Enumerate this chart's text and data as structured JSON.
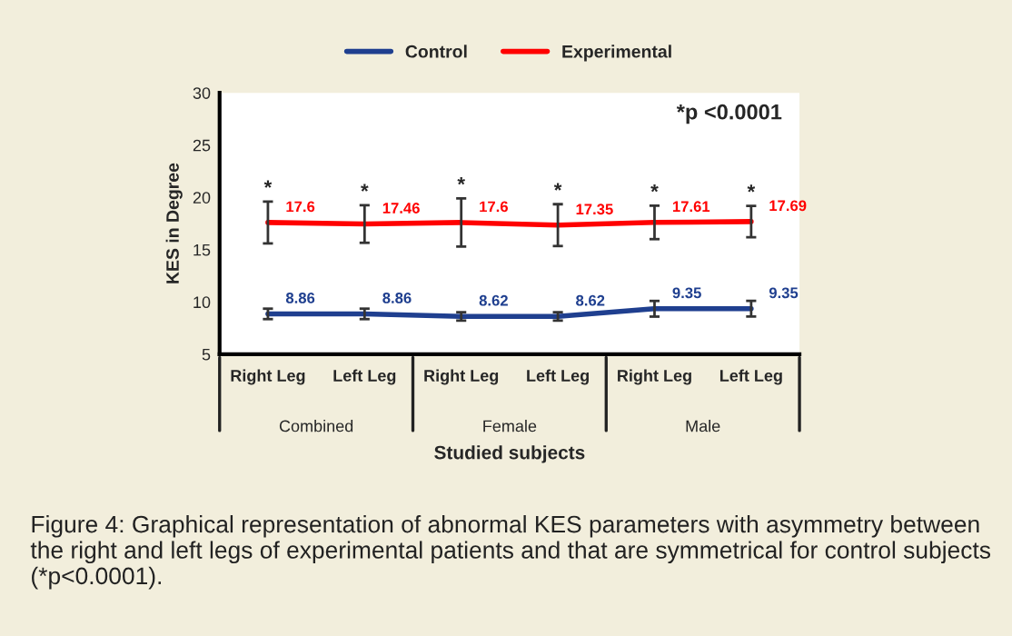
{
  "chart_data": {
    "type": "line",
    "xlabel": "Studied subjects",
    "ylabel": "KES in Degree",
    "categories": [
      "Right Leg",
      "Left Leg",
      "Right Leg",
      "Left Leg",
      "Right Leg",
      "Left Leg"
    ],
    "series": [
      {
        "name": "Control",
        "color": "#1f3f8f",
        "values": [
          8.86,
          8.86,
          8.62,
          8.62,
          9.35,
          9.35
        ],
        "errors": [
          0.5,
          0.5,
          0.4,
          0.4,
          0.75,
          0.75
        ]
      },
      {
        "name": "Experimental",
        "color": "#ff0000",
        "values": [
          17.6,
          17.46,
          17.6,
          17.35,
          17.61,
          17.69
        ],
        "errors": [
          2.0,
          1.8,
          2.3,
          2.0,
          1.6,
          1.5
        ]
      }
    ],
    "ylim": [
      5,
      30
    ],
    "yticks": [
      5,
      10,
      15,
      20,
      25,
      30
    ],
    "data_labels": true,
    "legend": "top",
    "grid": false,
    "marker": "none",
    "line_style": "solid",
    "annotations": [
      "*p <0.0001",
      "*",
      "*",
      "*",
      "*",
      "*",
      "*",
      "Combined",
      "Female",
      "Male",
      "Figure 4: Graphical representation of abnormal KES parameters with asymmetry between the right and left legs of experimental patients and that are symmetrical for control subjects (*p<0.0001)."
    ]
  }
}
